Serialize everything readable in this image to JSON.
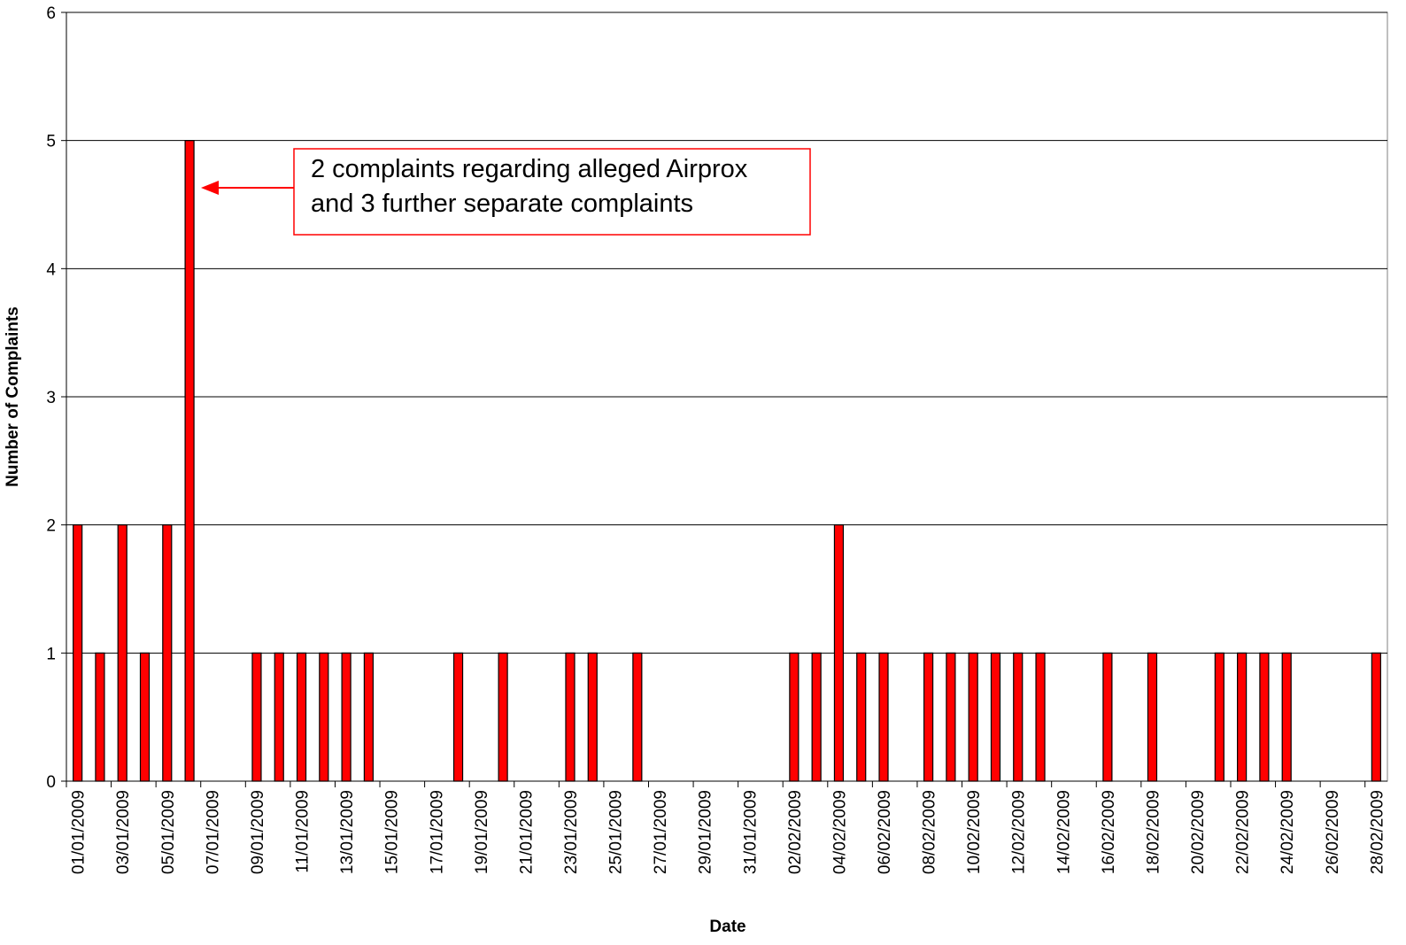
{
  "chart_data": {
    "type": "bar",
    "x_label": "Date",
    "y_label": "Number of Complaints",
    "annotation": [
      "2 complaints regarding alleged Airprox",
      "and 3 further separate complaints"
    ],
    "categories": [
      "01/01/2009",
      null,
      "03/01/2009",
      null,
      "05/01/2009",
      null,
      "07/01/2009",
      null,
      "09/01/2009",
      null,
      "11/01/2009",
      null,
      "13/01/2009",
      null,
      "15/01/2009",
      null,
      "17/01/2009",
      null,
      "19/01/2009",
      null,
      "21/01/2009",
      null,
      "23/01/2009",
      null,
      "25/01/2009",
      null,
      "27/01/2009",
      null,
      "29/01/2009",
      null,
      "31/01/2009",
      null,
      "02/02/2009",
      null,
      "04/02/2009",
      null,
      "06/02/2009",
      null,
      "08/02/2009",
      null,
      "10/02/2009",
      null,
      "12/02/2009",
      null,
      "14/02/2009",
      null,
      "16/02/2009",
      null,
      "18/02/2009",
      null,
      "20/02/2009",
      null,
      "22/02/2009",
      null,
      "24/02/2009",
      null,
      "26/02/2009",
      null,
      "28/02/2009"
    ],
    "values": [
      2,
      1,
      2,
      1,
      2,
      5,
      0,
      0,
      1,
      1,
      1,
      1,
      1,
      1,
      0,
      0,
      0,
      1,
      0,
      1,
      0,
      0,
      1,
      1,
      0,
      1,
      0,
      0,
      0,
      0,
      0,
      0,
      1,
      1,
      2,
      1,
      1,
      0,
      1,
      1,
      1,
      1,
      1,
      1,
      0,
      0,
      1,
      0,
      1,
      0,
      0,
      1,
      1,
      1,
      1,
      0,
      0,
      0,
      1
    ],
    "color": "#ff0000",
    "ylim": [
      0,
      6
    ],
    "yticks": [
      0,
      1,
      2,
      3,
      4,
      5,
      6
    ],
    "grid": true
  }
}
